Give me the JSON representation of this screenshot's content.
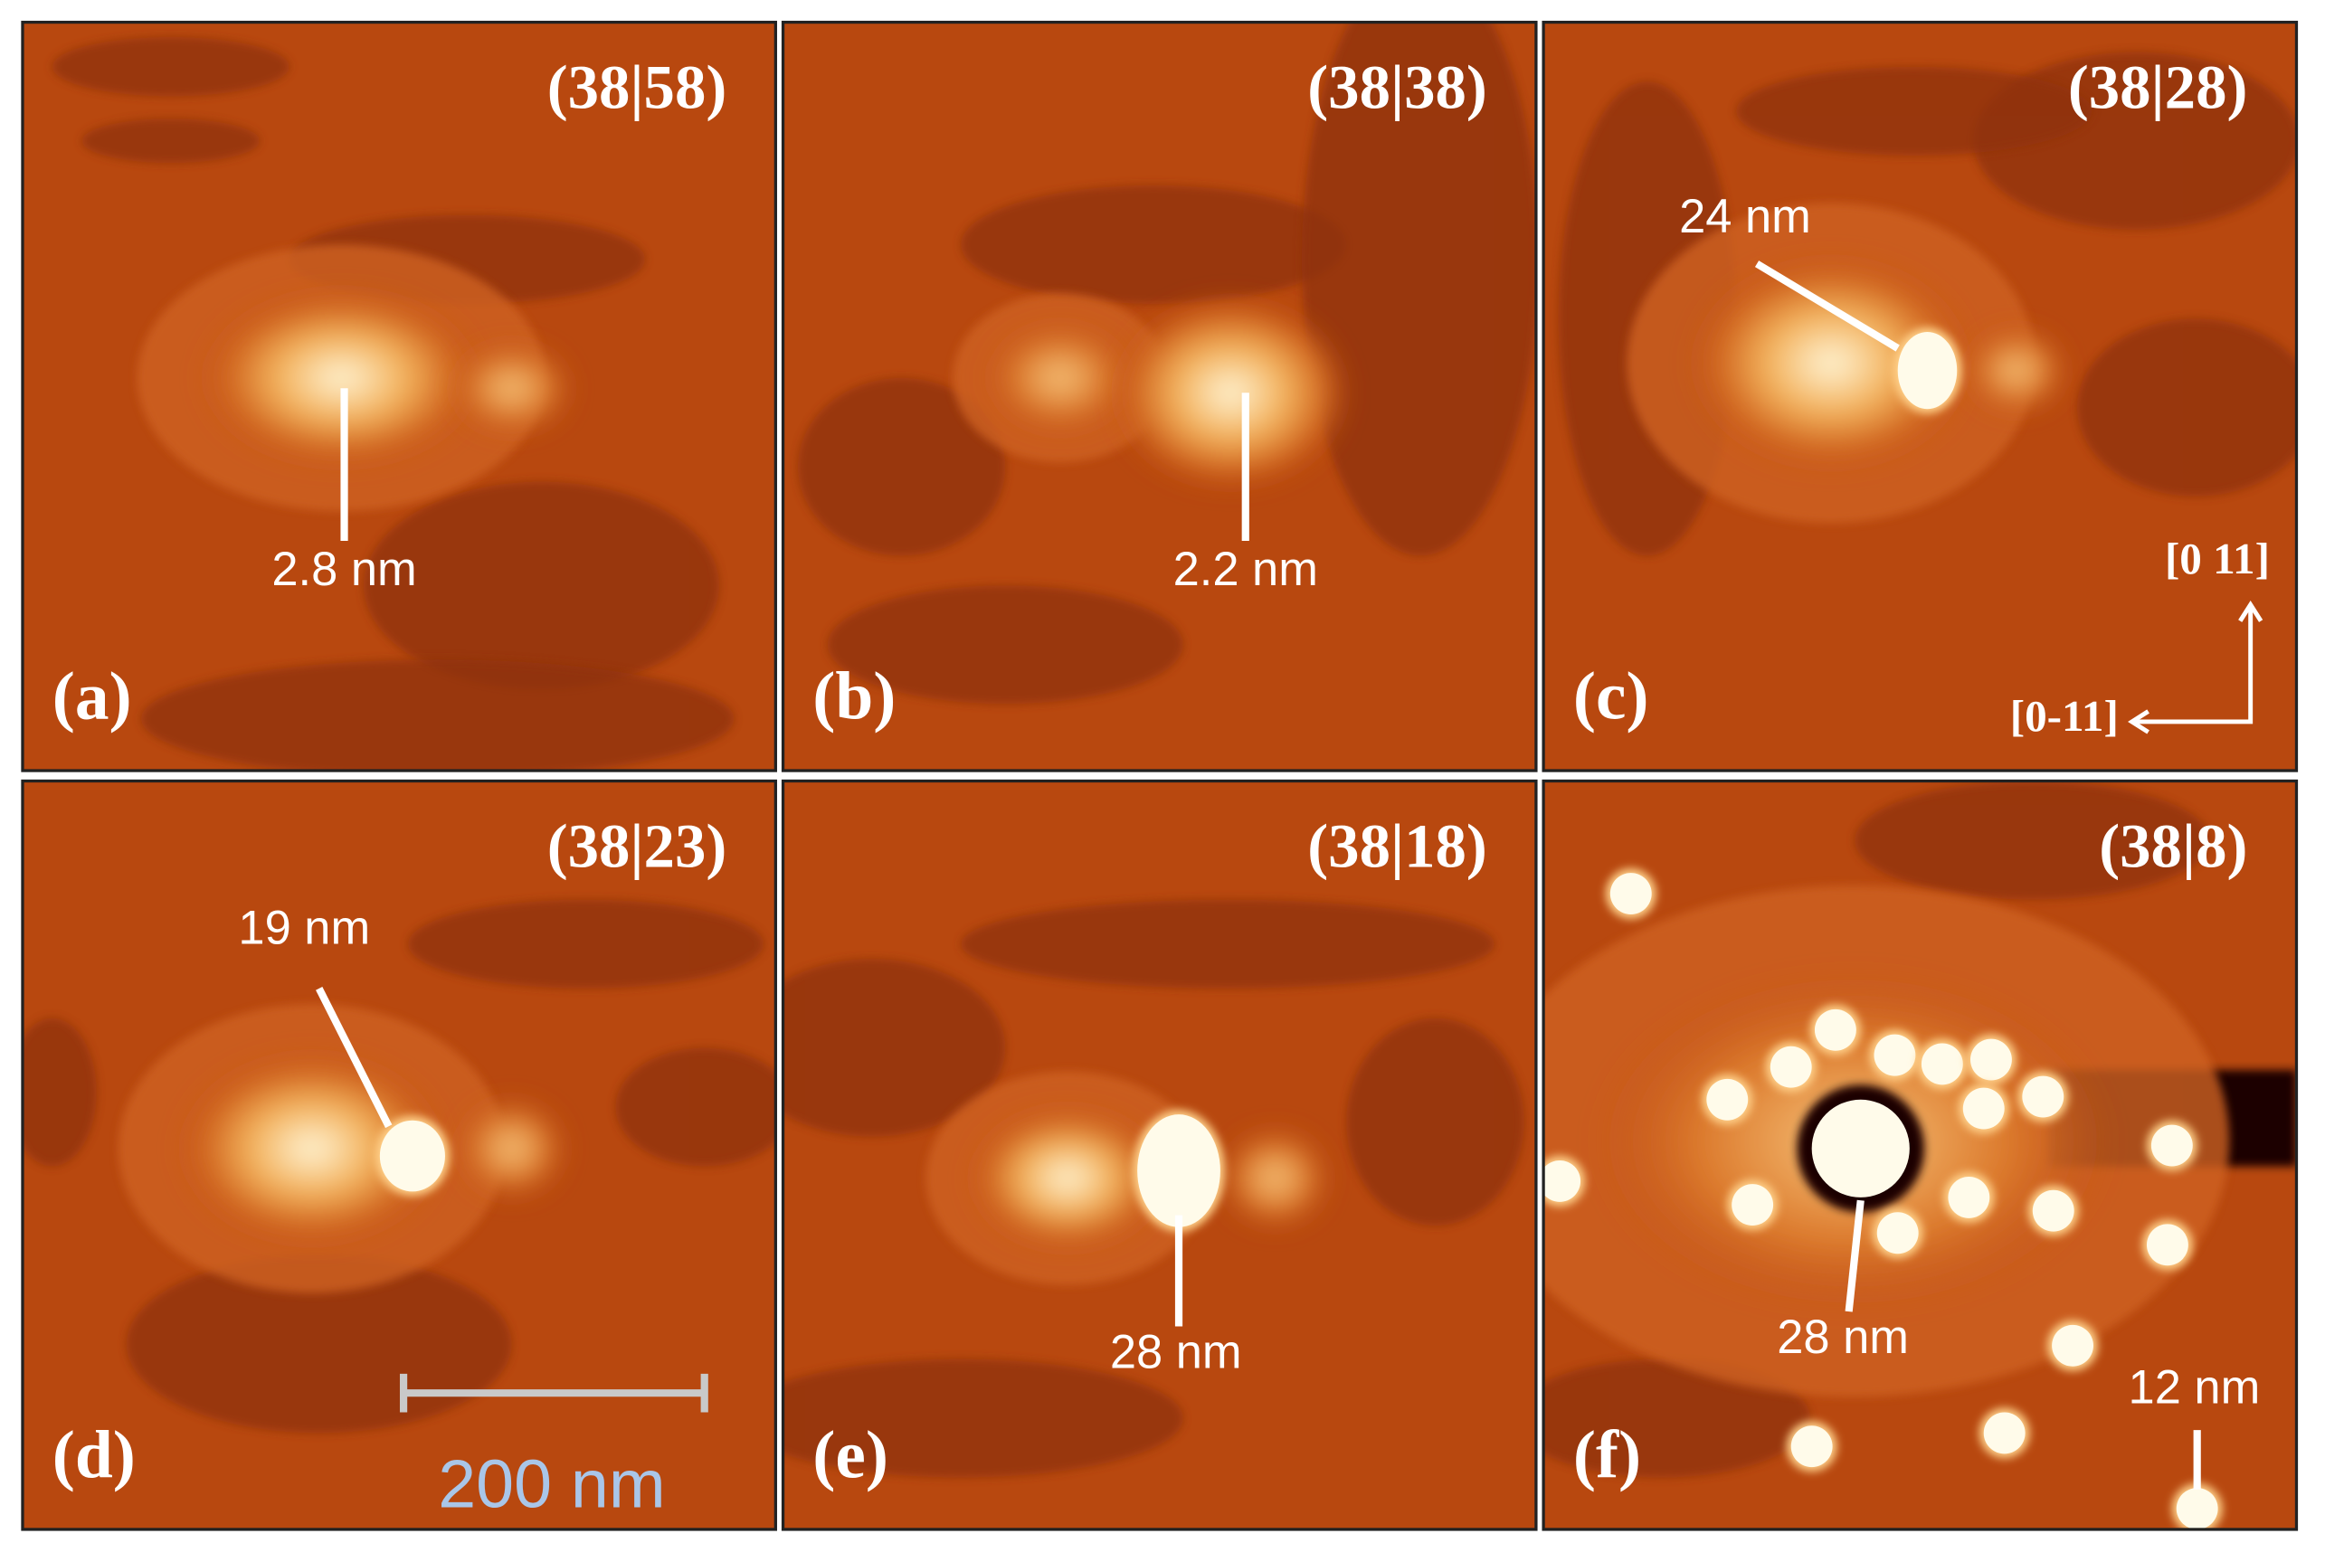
{
  "panels": [
    {
      "label": "(a)",
      "coverage": "(38|58)",
      "annotations": [
        "2.8 nm"
      ]
    },
    {
      "label": "(b)",
      "coverage": "(38|38)",
      "annotations": [
        "2.2 nm"
      ]
    },
    {
      "label": "(c)",
      "coverage": "(38|28)",
      "annotations": [
        "24 nm"
      ]
    },
    {
      "label": "(d)",
      "coverage": "(38|23)",
      "annotations": [
        "19 nm"
      ]
    },
    {
      "label": "(e)",
      "coverage": "(38|18)",
      "annotations": [
        "28 nm"
      ]
    },
    {
      "label": "(f)",
      "coverage": "(38|8)",
      "annotations": [
        "28 nm",
        "12 nm"
      ]
    }
  ],
  "directions": {
    "up": "[0 11]",
    "left": "[0-11]"
  },
  "scale_bar": "200 nm"
}
